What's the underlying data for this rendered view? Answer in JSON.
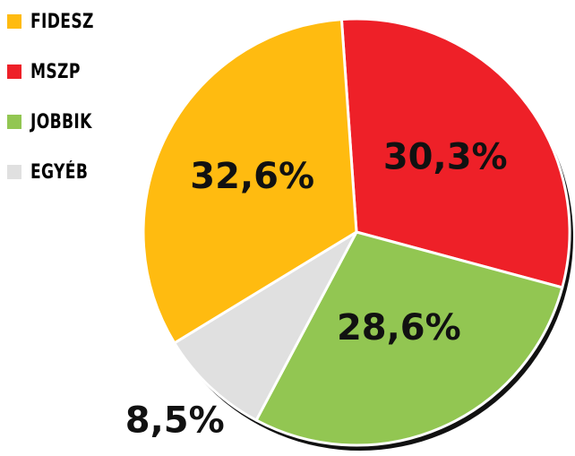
{
  "chart_data": {
    "type": "pie",
    "categories": [
      "FIDESZ",
      "MSZP",
      "JOBBIK",
      "EGYÉB"
    ],
    "values": [
      32.6,
      30.3,
      28.6,
      8.5
    ],
    "value_labels": [
      "32,6%",
      "30,3%",
      "28,6%",
      "8,5%"
    ],
    "colors": [
      "#FFBB10",
      "#EE2028",
      "#92C652",
      "#E0E0E0"
    ],
    "legend_position": "top-left",
    "start_slice": "MSZP",
    "direction": "clockwise",
    "title": ""
  },
  "legend": {
    "items": [
      {
        "label": "FIDESZ",
        "color": "#FFBB10"
      },
      {
        "label": "MSZP",
        "color": "#EE2028"
      },
      {
        "label": "JOBBIK",
        "color": "#92C652"
      },
      {
        "label": "EGYÉB",
        "color": "#E0E0E0"
      }
    ]
  }
}
